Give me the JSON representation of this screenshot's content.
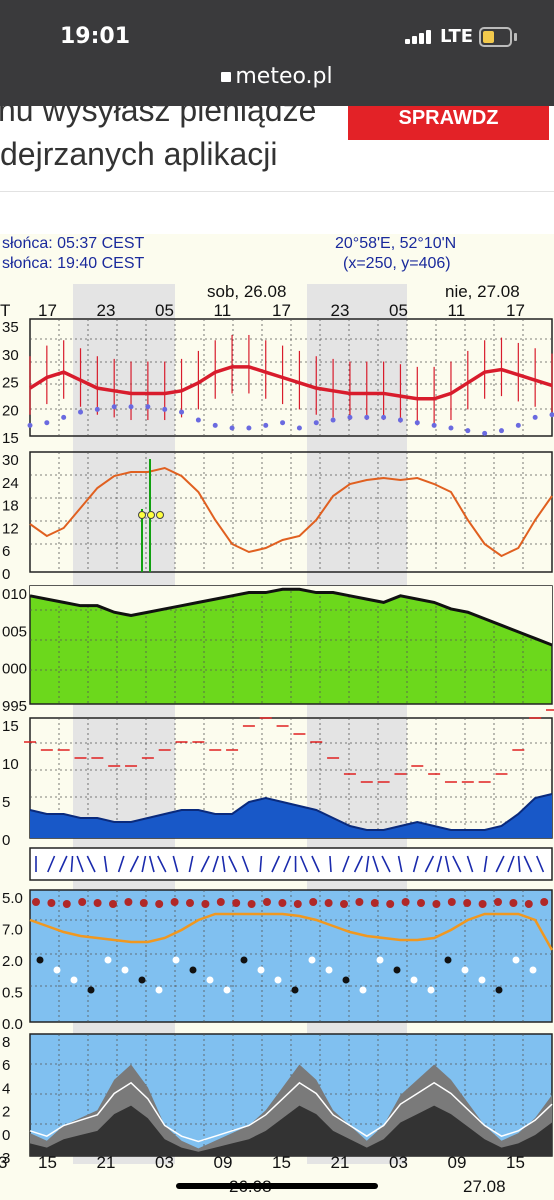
{
  "status_bar": {
    "time": "19:01",
    "network": "LTE",
    "battery_color": "#f2c94c"
  },
  "browser": {
    "url": "meteo.pl"
  },
  "ad": {
    "line1": "nu wysyłasz pieniądze",
    "line2": "dejrzanych aplikacji",
    "button_label": "SPRAWDZ",
    "button_color": "#e32227"
  },
  "meteogram": {
    "sunrise": "słońca: 05:37 CEST",
    "sunset": "słońca: 19:40 CEST",
    "coordinates": "20°58'E, 52°10'N",
    "grid_position": "(x=250,  y=406)",
    "day1": "sob, 26.08",
    "day2": "nie, 27.08",
    "top_hours": [
      "17",
      "23",
      "05",
      "11",
      "17",
      "23",
      "05",
      "11",
      "17"
    ],
    "top_prefix": "T",
    "bottom_hours": [
      "15",
      "21",
      "03",
      "09",
      "15",
      "21",
      "03",
      "09",
      "15"
    ],
    "bottom_prefix": "3",
    "bottom_dates": [
      "26.08",
      "27.08"
    ],
    "panels": {
      "temperature": {
        "ticks": [
          "35",
          "30",
          "25",
          "20",
          "15"
        ],
        "range": [
          15,
          37
        ]
      },
      "precipitation": {
        "ticks": [
          "30",
          "24",
          "18",
          "12",
          "6",
          "0"
        ],
        "range": [
          0,
          30
        ]
      },
      "pressure": {
        "ticks": [
          "010",
          "005",
          "000",
          "995"
        ],
        "range": [
          995,
          1013
        ]
      },
      "wind": {
        "ticks": [
          "15",
          "10",
          "5",
          "0"
        ],
        "range": [
          0,
          15
        ]
      },
      "cloud_height": {
        "ticks": [
          "5.0",
          "7.0",
          "2.0",
          "0.5",
          "0.0"
        ]
      },
      "cloud_cover": {
        "ticks": [
          "8",
          "6",
          "4",
          "2",
          "0",
          "3"
        ],
        "range": [
          0,
          8
        ]
      }
    },
    "colors": {
      "text": "#1a2a9c",
      "temp_line": "#d81c2c",
      "precip_line": "#e06020",
      "pressure_fill": "#6cd81c",
      "wind_fill": "#1858c8",
      "cloud_sky": "#80c0f0",
      "cloud_line": "#f09820"
    }
  },
  "chart_data": [
    {
      "type": "line",
      "title": "",
      "ylabel": "",
      "ylim": [
        15,
        37
      ],
      "series": [
        {
          "name": "",
          "values": [
            24,
            26,
            27,
            25.5,
            24,
            23.5,
            23,
            23,
            23,
            23.5,
            25,
            27,
            28,
            28,
            27,
            26,
            25,
            24,
            23.5,
            23,
            23,
            23,
            22.5,
            22,
            22,
            23,
            25,
            27,
            27.5,
            26.5,
            25.5,
            24.5
          ]
        },
        {
          "name": "",
          "values": [
            17,
            17.5,
            18.5,
            19.5,
            20,
            20.5,
            20.5,
            20.5,
            20,
            19.5,
            18,
            17,
            16.5,
            16.5,
            17,
            17.5,
            16.5,
            17.5,
            18,
            18.5,
            18.5,
            18.5,
            18,
            17.5,
            17,
            16.5,
            16,
            15.5,
            16,
            17,
            18.5,
            19
          ]
        }
      ]
    },
    {
      "type": "line",
      "title": "",
      "ylabel": "",
      "ylim": [
        0,
        30
      ],
      "series": [
        {
          "name": "",
          "values": [
            12,
            9,
            11,
            16,
            21,
            24,
            25,
            25,
            26,
            24,
            20,
            13,
            7,
            5,
            6,
            8,
            9,
            13,
            19,
            22,
            23,
            23.5,
            23,
            23.5,
            22,
            20,
            13,
            7,
            4,
            6,
            13,
            19
          ]
        }
      ]
    },
    {
      "type": "area",
      "title": "",
      "ylabel": "",
      "ylim": [
        995,
        1013
      ],
      "series": [
        {
          "name": "",
          "values": [
            1011.5,
            1011,
            1010.5,
            1010,
            1010,
            1009,
            1008.5,
            1009,
            1009.5,
            1010,
            1010.5,
            1011,
            1011.5,
            1012,
            1012,
            1012.5,
            1012.5,
            1012,
            1012,
            1011.5,
            1011,
            1010.5,
            1011.5,
            1011,
            1010.5,
            1009.5,
            1009,
            1008,
            1007,
            1006,
            1005,
            1004
          ]
        }
      ]
    },
    {
      "type": "area",
      "title": "",
      "ylabel": "",
      "ylim": [
        0,
        15
      ],
      "series": [
        {
          "name": "",
          "values": [
            3.5,
            3,
            3,
            2.5,
            2.5,
            2,
            2,
            2.5,
            3,
            3.5,
            3.5,
            3,
            3,
            4.5,
            5,
            4.5,
            4,
            3.5,
            2.5,
            1.5,
            1,
            1,
            1.5,
            2,
            1.5,
            1,
            1,
            1,
            1.5,
            3,
            5,
            5.5
          ]
        }
      ]
    },
    {
      "type": "area",
      "title": "",
      "ylabel": "",
      "ylim": [
        0,
        8
      ],
      "series": [
        {
          "name": "",
          "values": [
            1.5,
            1,
            2,
            2.5,
            3,
            5,
            6,
            4.5,
            2,
            1,
            0.5,
            1,
            1.5,
            2,
            3,
            4.5,
            6,
            5,
            3,
            2,
            1,
            2,
            4,
            5,
            6,
            5,
            3.5,
            2,
            1,
            1.5,
            2.5,
            4
          ]
        }
      ]
    }
  ]
}
